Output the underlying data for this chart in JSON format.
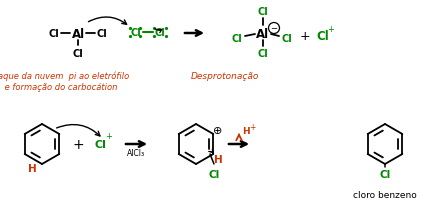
{
  "bg_color": "#ffffff",
  "black": "#000000",
  "green": "#008800",
  "orange": "#cc3300",
  "label_ataque": "Ataque da nuvem  pi ao eletrófilo\n e formação do carbocátion",
  "label_desprot": "Desprotonação",
  "label_cloro": "cloro benzeno"
}
